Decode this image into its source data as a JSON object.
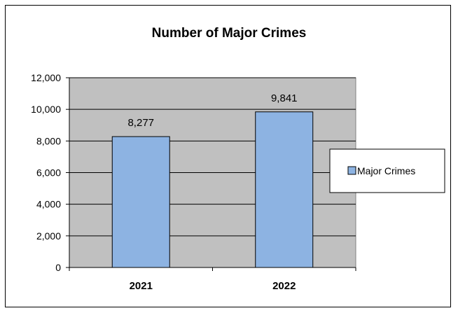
{
  "chart_data": {
    "type": "bar",
    "title": "Number of Major Crimes",
    "xlabel": "",
    "ylabel": "",
    "categories": [
      "2021",
      "2022"
    ],
    "series": [
      {
        "name": "Major Crimes",
        "values": [
          8277,
          9841
        ],
        "labels": [
          "8,277",
          "9,841"
        ]
      }
    ],
    "ylim": [
      0,
      12000
    ],
    "yticks": [
      0,
      2000,
      4000,
      6000,
      8000,
      10000,
      12000
    ],
    "ytick_labels": [
      "0",
      "2,000",
      "4,000",
      "6,000",
      "8,000",
      "10,000",
      "12,000"
    ],
    "grid": true,
    "legend": "right",
    "colors": {
      "bar": "#8DB3E2",
      "plot_bg": "#C0C0C0",
      "gridline": "#000000"
    }
  }
}
